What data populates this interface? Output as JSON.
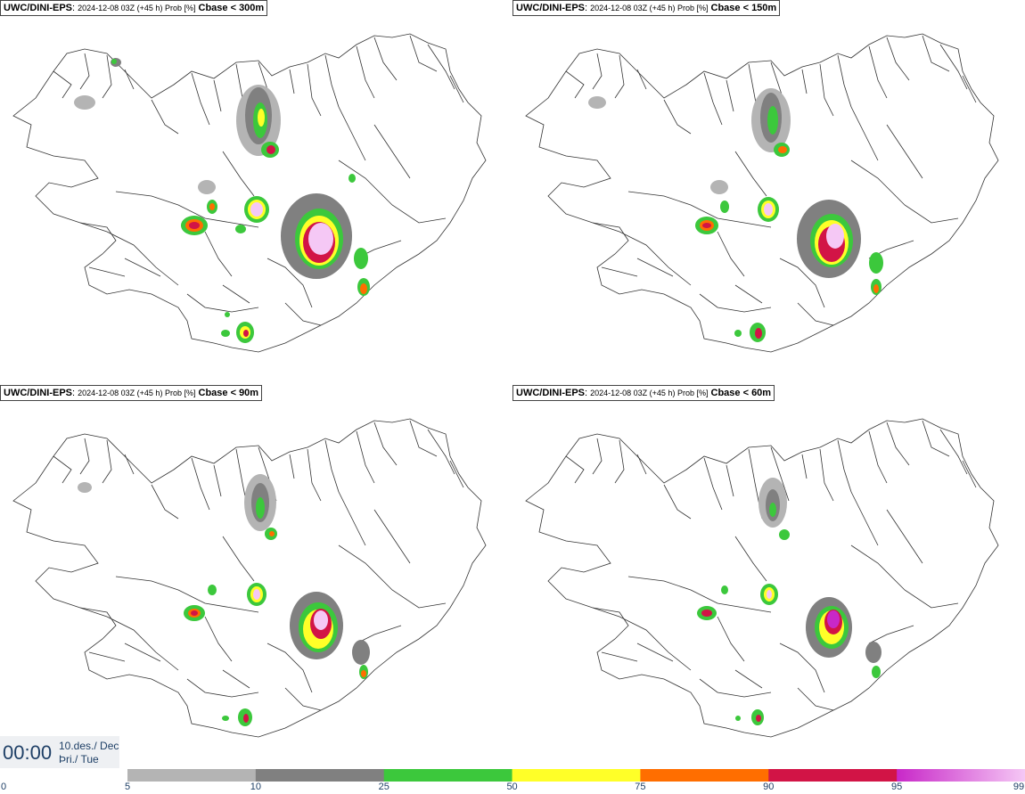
{
  "panels": [
    {
      "model": "UWC/DINI-EPS",
      "meta": "2024-12-08 03Z (+45 h) Prob [%]",
      "variable": "Cbase < 300m"
    },
    {
      "model": "UWC/DINI-EPS",
      "meta": "2024-12-08 03Z (+45 h) Prob [%]",
      "variable": "Cbase < 150m"
    },
    {
      "model": "UWC/DINI-EPS",
      "meta": "2024-12-08 03Z (+45 h) Prob [%]",
      "variable": "Cbase < 90m"
    },
    {
      "model": "UWC/DINI-EPS",
      "meta": "2024-12-08 03Z (+45 h) Prob [%]",
      "variable": "Cbase < 60m"
    }
  ],
  "time": {
    "clock": "00:00",
    "date_line": "10.des./ Dec",
    "day_line": "Þri./ Tue"
  },
  "legend": {
    "ticks": [
      "0",
      "5",
      "10",
      "25",
      "50",
      "75",
      "90",
      "95",
      "99"
    ],
    "bins": [
      {
        "from": "5",
        "to": "10",
        "color": "#b4b4b4"
      },
      {
        "from": "10",
        "to": "25",
        "color": "#808080"
      },
      {
        "from": "25",
        "to": "50",
        "color": "#3cc83c"
      },
      {
        "from": "50",
        "to": "75",
        "color": "#ffff28"
      },
      {
        "from": "75",
        "to": "90",
        "color": "#ff6e00"
      },
      {
        "from": "90",
        "to": "95",
        "color": "#d21446"
      },
      {
        "from": "95",
        "to": "99",
        "color": "#c828c8"
      }
    ],
    "top_color": "#f5c8f5"
  }
}
